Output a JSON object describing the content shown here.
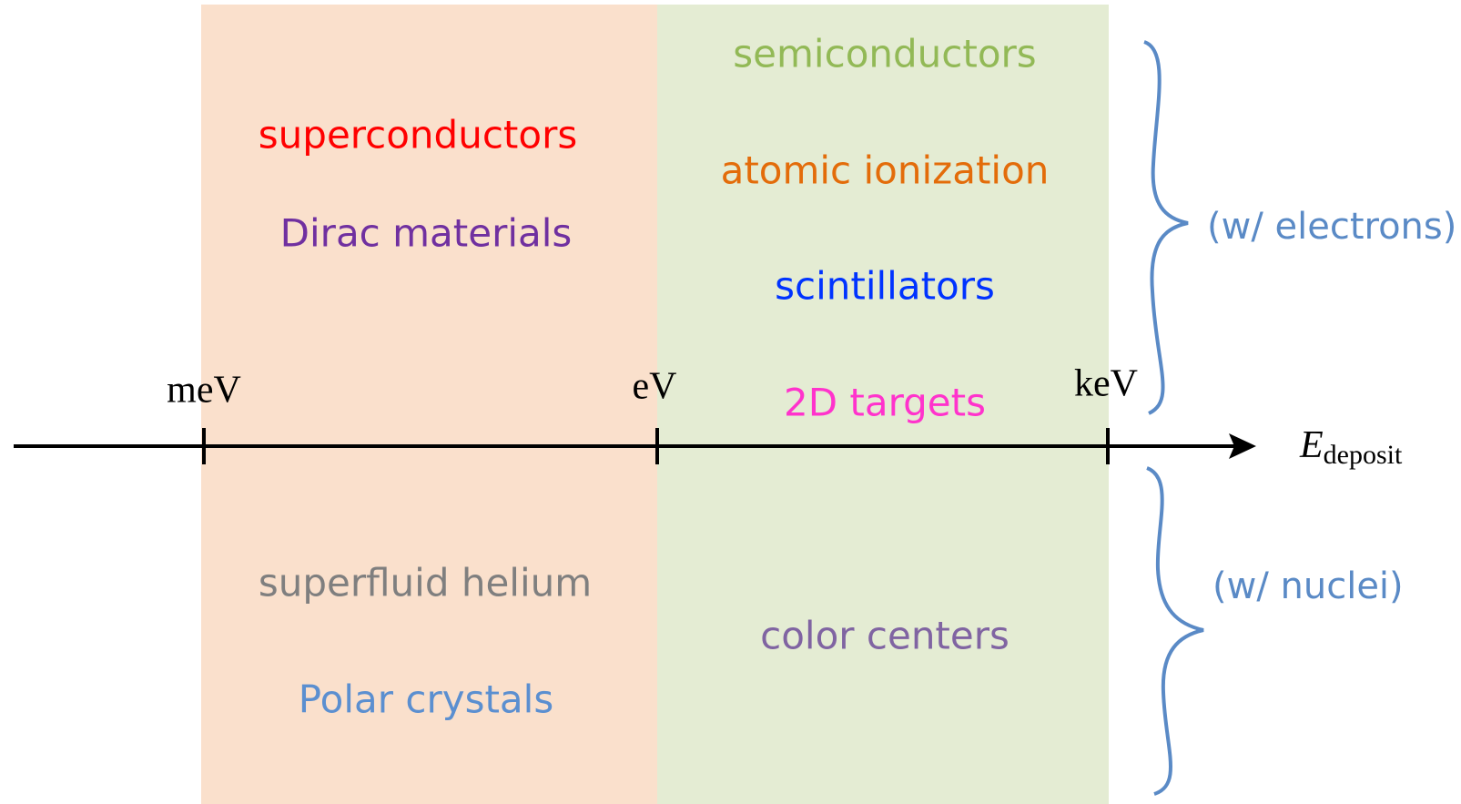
{
  "axis": {
    "ticks": [
      "meV",
      "eV",
      "keV"
    ],
    "label": "E",
    "label_subscript": "deposit"
  },
  "regions": [
    {
      "top": [
        "superconductors",
        "Dirac materials"
      ],
      "bottom": [
        "superfluid helium",
        "Polar crystals"
      ]
    },
    {
      "top": [
        "semiconductors",
        "atomic ionization",
        "scintillators",
        "2D targets"
      ],
      "bottom": [
        "color centers"
      ]
    }
  ],
  "braces": [
    "(w/ electrons)",
    "(w/ nuclei)"
  ]
}
